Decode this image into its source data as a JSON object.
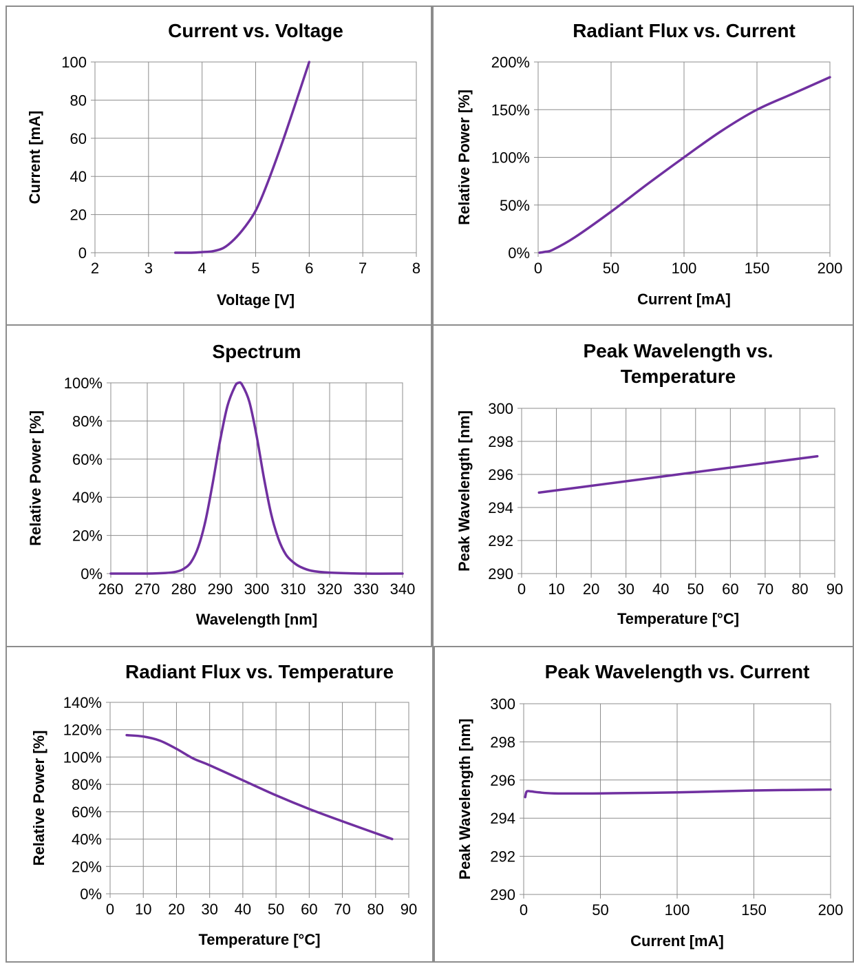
{
  "colors": {
    "line": "#7030a0",
    "grid": "#8c8c8c",
    "border": "#8c8c8c"
  },
  "chart_data": [
    {
      "type": "line",
      "title": [
        "Current vs. Voltage"
      ],
      "xlabel": "Voltage [V]",
      "ylabel": "Current [mA]",
      "xlim": [
        2,
        8
      ],
      "ylim": [
        0,
        100
      ],
      "xticks": [
        2,
        3,
        4,
        5,
        6,
        7,
        8
      ],
      "xtick_labels": [
        "2",
        "3",
        "4",
        "5",
        "6",
        "7",
        "8"
      ],
      "yticks": [
        0,
        20,
        40,
        60,
        80,
        100
      ],
      "ytick_labels": [
        "0",
        "20",
        "40",
        "60",
        "80",
        "100"
      ],
      "grid": true,
      "series": [
        {
          "x": [
            3.5,
            3.8,
            4.0,
            4.2,
            4.4,
            4.6,
            4.8,
            5.0,
            5.2,
            5.5,
            5.8,
            6.0
          ],
          "y": [
            0,
            0,
            0.3,
            0.8,
            2.5,
            7,
            13.5,
            22,
            35,
            58,
            83,
            100
          ]
        }
      ]
    },
    {
      "type": "line",
      "title": [
        "Radiant Flux vs. Current"
      ],
      "xlabel": "Current [mA]",
      "ylabel": "Relative Power [%]",
      "xlim": [
        0,
        200
      ],
      "ylim": [
        0,
        200
      ],
      "xticks": [
        0,
        50,
        100,
        150,
        200
      ],
      "xtick_labels": [
        "0",
        "50",
        "100",
        "150",
        "200"
      ],
      "yticks": [
        0,
        50,
        100,
        150,
        200
      ],
      "ytick_labels": [
        "0%",
        "50%",
        "100%",
        "150%",
        "200%"
      ],
      "grid": true,
      "series": [
        {
          "x": [
            1,
            5,
            10,
            25,
            50,
            75,
            100,
            125,
            150,
            175,
            200
          ],
          "y": [
            0,
            1,
            3,
            16,
            43,
            72,
            100,
            127,
            150,
            167,
            184
          ]
        }
      ]
    },
    {
      "type": "line",
      "title": [
        "Spectrum"
      ],
      "xlabel": "Wavelength [nm]",
      "ylabel": "Relative Power [%]",
      "xlim": [
        260,
        340
      ],
      "ylim": [
        0,
        100
      ],
      "xticks": [
        260,
        270,
        280,
        290,
        300,
        310,
        320,
        330,
        340
      ],
      "xtick_labels": [
        "260",
        "270",
        "280",
        "290",
        "300",
        "310",
        "320",
        "330",
        "340"
      ],
      "yticks": [
        0,
        20,
        40,
        60,
        80,
        100
      ],
      "ytick_labels": [
        "0%",
        "20%",
        "40%",
        "60%",
        "80%",
        "100%"
      ],
      "grid": true,
      "series": [
        {
          "x": [
            260,
            270,
            275,
            278,
            280,
            282,
            284,
            286,
            288,
            290,
            292,
            294,
            295,
            296,
            298,
            300,
            302,
            304,
            306,
            308,
            310,
            312,
            315,
            320,
            330,
            340
          ],
          "y": [
            0,
            0,
            0.3,
            1,
            2.5,
            6,
            14,
            28,
            48,
            70,
            88,
            98,
            100,
            99,
            90,
            72,
            50,
            31,
            18,
            10,
            6,
            3.5,
            1.5,
            0.5,
            0,
            0
          ]
        }
      ]
    },
    {
      "type": "line",
      "title": [
        "Peak Wavelength vs.",
        "Temperature"
      ],
      "xlabel": "Temperature [°C]",
      "ylabel": "Peak Wavelength [nm]",
      "xlim": [
        0,
        90
      ],
      "ylim": [
        290,
        300
      ],
      "xticks": [
        0,
        10,
        20,
        30,
        40,
        50,
        60,
        70,
        80,
        90
      ],
      "xtick_labels": [
        "0",
        "10",
        "20",
        "30",
        "40",
        "50",
        "60",
        "70",
        "80",
        "90"
      ],
      "yticks": [
        290,
        292,
        294,
        296,
        298,
        300
      ],
      "ytick_labels": [
        "290",
        "292",
        "294",
        "296",
        "298",
        "300"
      ],
      "grid": true,
      "series": [
        {
          "x": [
            5,
            25,
            45,
            65,
            85
          ],
          "y": [
            294.9,
            295.45,
            296.0,
            296.55,
            297.1
          ]
        }
      ]
    },
    {
      "type": "line",
      "title": [
        "Radiant Flux vs. Temperature"
      ],
      "xlabel": "Temperature [°C]",
      "ylabel": "Relative Power [%]",
      "xlim": [
        0,
        90
      ],
      "ylim": [
        0,
        140
      ],
      "xticks": [
        0,
        10,
        20,
        30,
        40,
        50,
        60,
        70,
        80,
        90
      ],
      "xtick_labels": [
        "0",
        "10",
        "20",
        "30",
        "40",
        "50",
        "60",
        "70",
        "80",
        "90"
      ],
      "yticks": [
        0,
        20,
        40,
        60,
        80,
        100,
        120,
        140
      ],
      "ytick_labels": [
        "0%",
        "20%",
        "40%",
        "60%",
        "80%",
        "100%",
        "120%",
        "140%"
      ],
      "grid": true,
      "series": [
        {
          "x": [
            5,
            10,
            15,
            20,
            25,
            30,
            40,
            50,
            60,
            70,
            85
          ],
          "y": [
            116,
            115,
            112,
            106,
            99,
            94,
            83,
            72,
            62,
            53,
            40
          ]
        }
      ]
    },
    {
      "type": "line",
      "title": [
        "Peak Wavelength vs. Current"
      ],
      "xlabel": "Current [mA]",
      "ylabel": "Peak Wavelength [nm]",
      "xlim": [
        0,
        200
      ],
      "ylim": [
        290,
        300
      ],
      "xticks": [
        0,
        50,
        100,
        150,
        200
      ],
      "xtick_labels": [
        "0",
        "50",
        "100",
        "150",
        "200"
      ],
      "yticks": [
        290,
        292,
        294,
        296,
        298,
        300
      ],
      "ytick_labels": [
        "290",
        "292",
        "294",
        "296",
        "298",
        "300"
      ],
      "grid": true,
      "series": [
        {
          "x": [
            1,
            2,
            5,
            10,
            20,
            50,
            100,
            150,
            200
          ],
          "y": [
            295.1,
            295.4,
            295.4,
            295.35,
            295.3,
            295.3,
            295.35,
            295.45,
            295.5
          ]
        }
      ]
    }
  ]
}
